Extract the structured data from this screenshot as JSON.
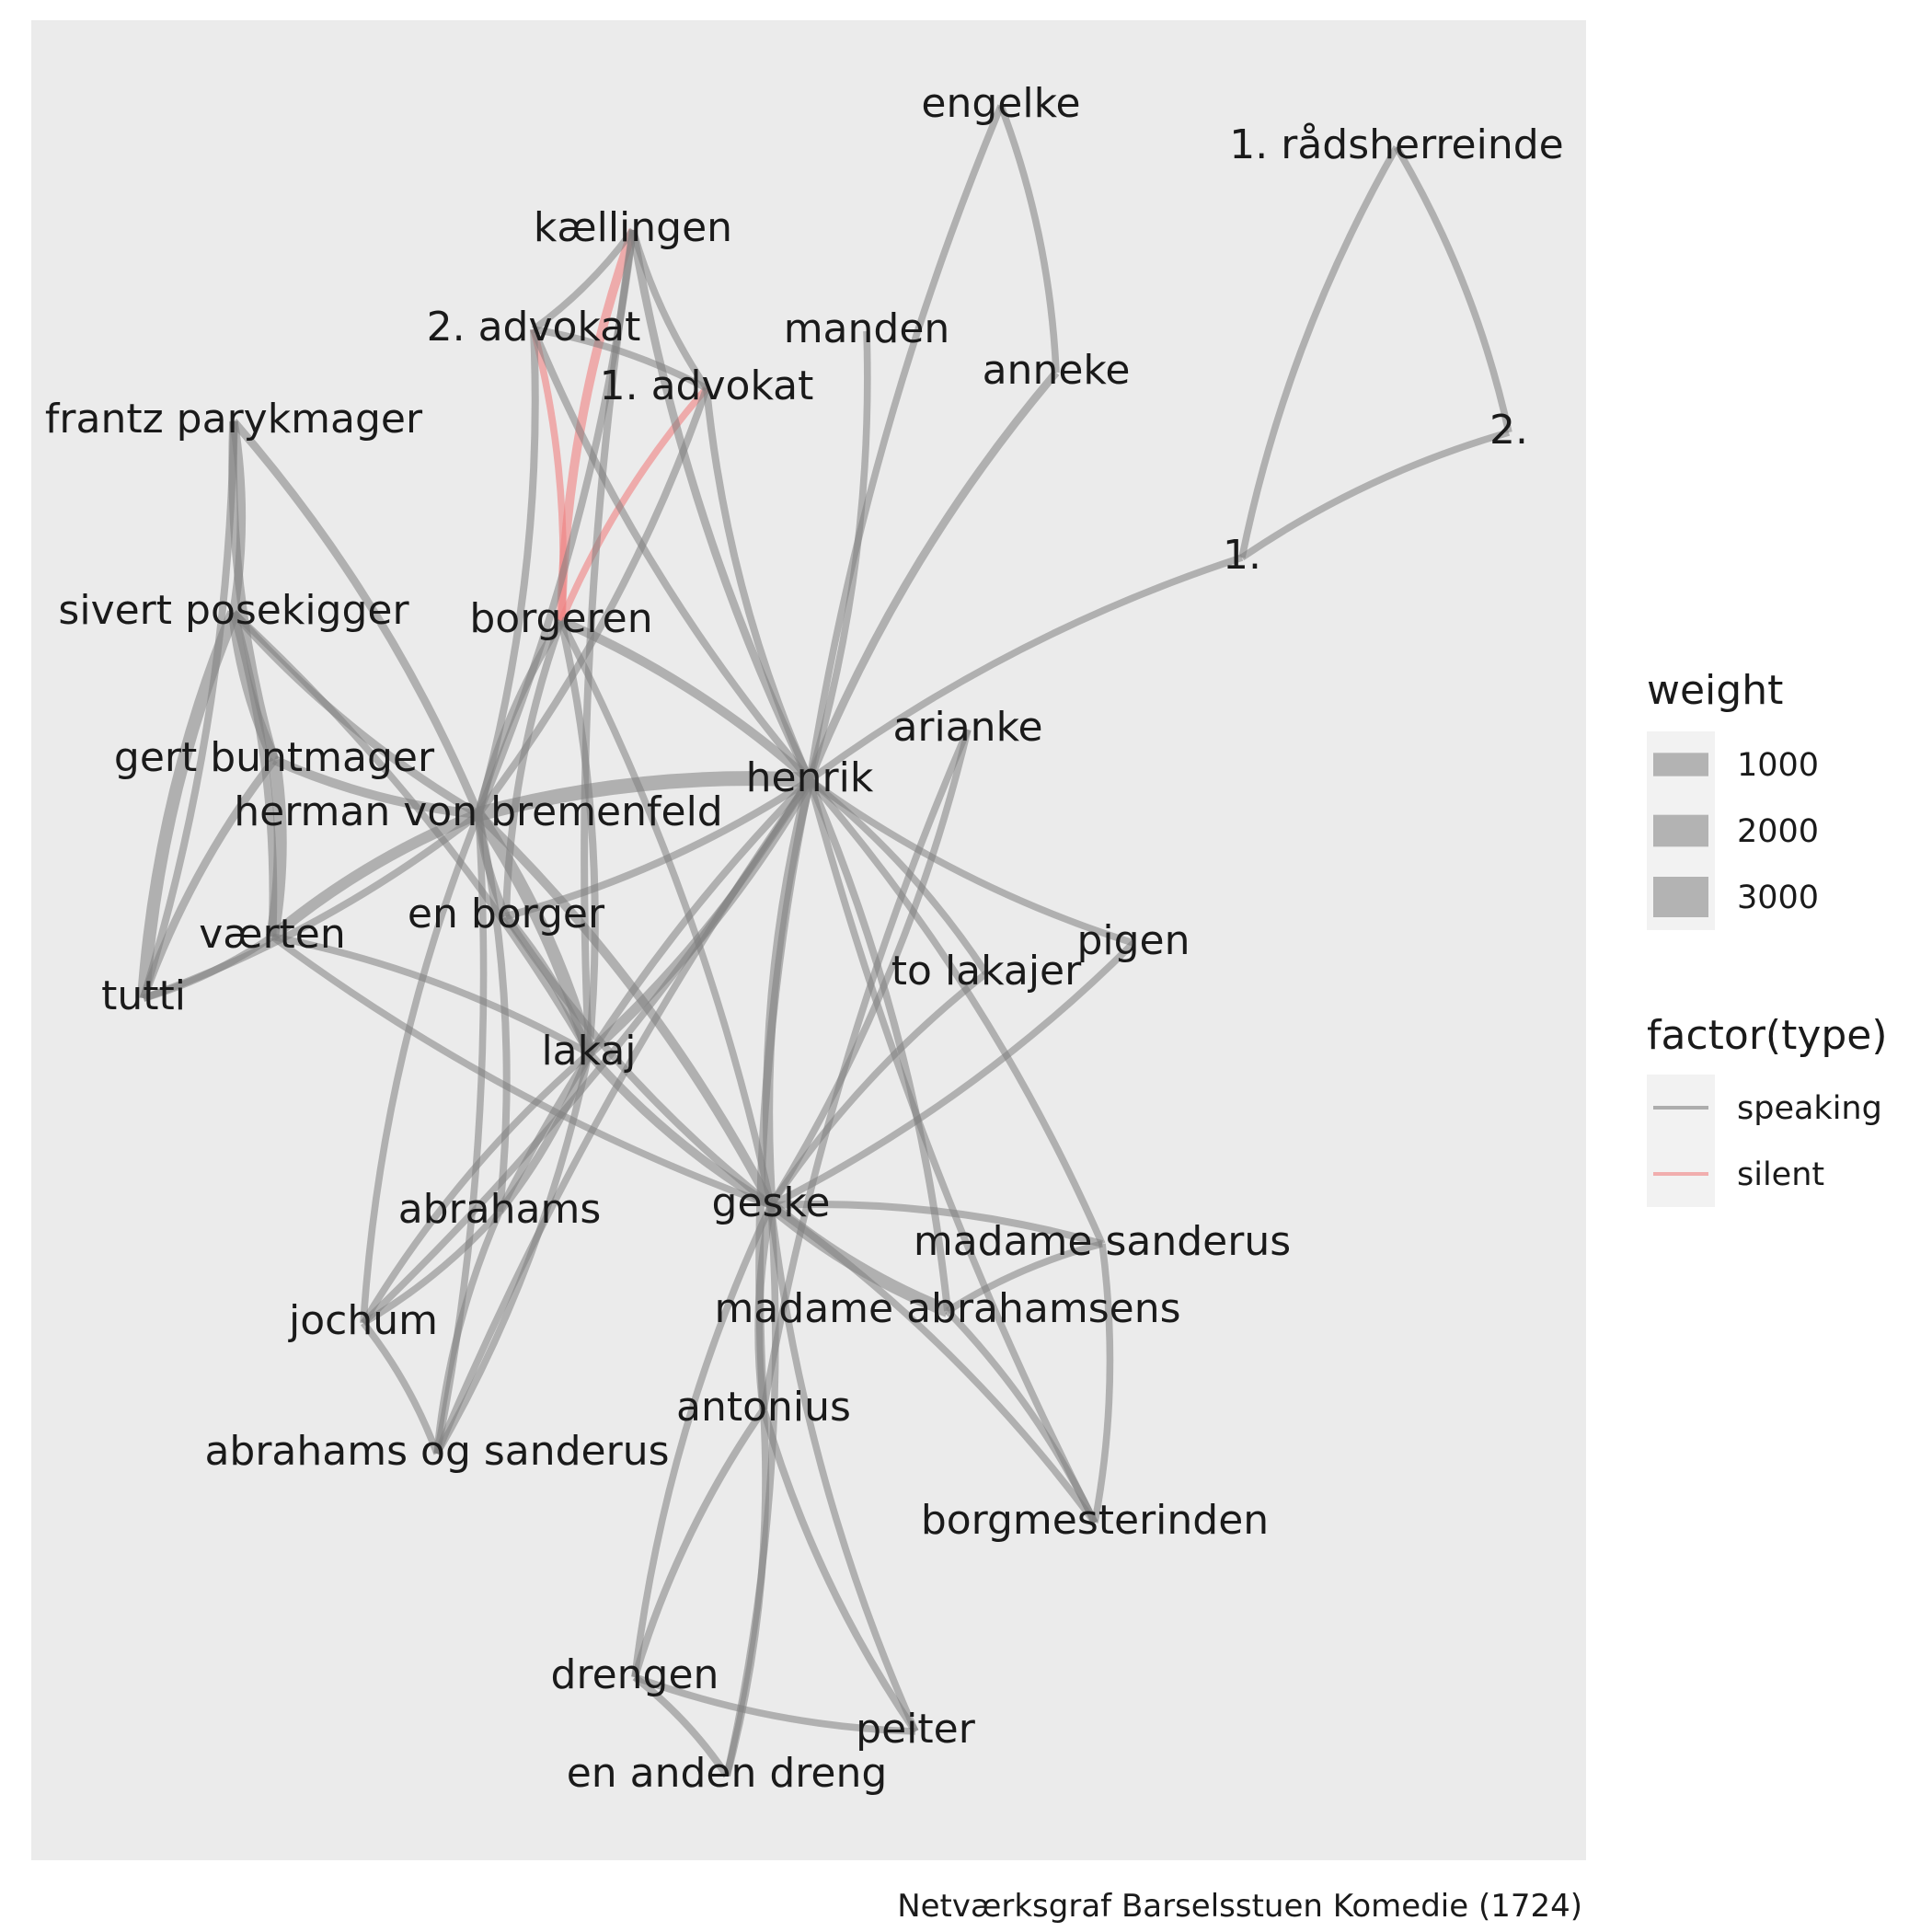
{
  "caption": "Netværksgraf Barselsstuen Komedie (1724)",
  "colors": {
    "panel": "#ebebeb",
    "speaking": "#7f7f7f",
    "silent": "#f08080",
    "text": "#1a1a1a"
  },
  "chart_data": {
    "type": "network",
    "nodes": [
      {
        "id": "henrik",
        "label": "henrik"
      },
      {
        "id": "herman von bremenfeld",
        "label": "herman von bremenfeld"
      },
      {
        "id": "geske",
        "label": "geske"
      },
      {
        "id": "lakaj",
        "label": "lakaj"
      },
      {
        "id": "borgeren",
        "label": "borgeren"
      },
      {
        "id": "kællingen",
        "label": "kællingen"
      },
      {
        "id": "2. advokat",
        "label": "2. advokat"
      },
      {
        "id": "1. advokat",
        "label": "1. advokat"
      },
      {
        "id": "manden",
        "label": "manden"
      },
      {
        "id": "engelke",
        "label": "engelke"
      },
      {
        "id": "anneke",
        "label": "anneke"
      },
      {
        "id": "1. rådsherreinde",
        "label": "1. rådsherreinde"
      },
      {
        "id": "2.",
        "label": "2."
      },
      {
        "id": "1.",
        "label": "1."
      },
      {
        "id": "frantz parykmager",
        "label": "frantz parykmager"
      },
      {
        "id": "sivert posekigger",
        "label": "sivert posekigger"
      },
      {
        "id": "gert buntmager",
        "label": "gert buntmager"
      },
      {
        "id": "værten",
        "label": "værten"
      },
      {
        "id": "tutti",
        "label": "tutti"
      },
      {
        "id": "en borger",
        "label": "en borger"
      },
      {
        "id": "arianke",
        "label": "arianke"
      },
      {
        "id": "pigen",
        "label": "pigen"
      },
      {
        "id": "to lakajer",
        "label": "to lakajer"
      },
      {
        "id": "abrahams",
        "label": "abrahams"
      },
      {
        "id": "jochum",
        "label": "jochum"
      },
      {
        "id": "abrahams og sanderus",
        "label": "abrahams og sanderus"
      },
      {
        "id": "madame sanderus",
        "label": "madame sanderus"
      },
      {
        "id": "madame abrahamsens",
        "label": "madame abrahamsens"
      },
      {
        "id": "antonius",
        "label": "antonius"
      },
      {
        "id": "borgmesterinden",
        "label": "borgmesterinden"
      },
      {
        "id": "drengen",
        "label": "drengen"
      },
      {
        "id": "en anden dreng",
        "label": "en anden dreng"
      },
      {
        "id": "peiter",
        "label": "peiter"
      }
    ],
    "edges": [
      {
        "source": "kællingen",
        "target": "borgeren",
        "type": "silent",
        "weight": 1500
      },
      {
        "source": "2. advokat",
        "target": "borgeren",
        "type": "silent",
        "weight": 900
      },
      {
        "source": "1. advokat",
        "target": "borgeren",
        "type": "silent",
        "weight": 900
      },
      {
        "source": "herman von bremenfeld",
        "target": "henrik",
        "type": "speaking",
        "weight": 3000
      },
      {
        "source": "geske",
        "target": "madame abrahamsens",
        "type": "speaking",
        "weight": 2500
      },
      {
        "source": "herman von bremenfeld",
        "target": "lakaj",
        "type": "speaking",
        "weight": 2500
      },
      {
        "source": "sivert posekigger",
        "target": "tutti",
        "type": "speaking",
        "weight": 2500
      },
      {
        "source": "gert buntmager",
        "target": "værten",
        "type": "speaking",
        "weight": 2500
      },
      {
        "source": "sivert posekigger",
        "target": "gert buntmager",
        "type": "speaking",
        "weight": 2000
      },
      {
        "source": "værten",
        "target": "herman von bremenfeld",
        "type": "speaking",
        "weight": 2000
      },
      {
        "source": "henrik",
        "target": "geske",
        "type": "speaking",
        "weight": 1800
      },
      {
        "source": "henrik",
        "target": "lakaj",
        "type": "speaking",
        "weight": 1800
      },
      {
        "source": "henrik",
        "target": "borgeren",
        "type": "speaking",
        "weight": 1500
      },
      {
        "source": "herman von bremenfeld",
        "target": "geske",
        "type": "speaking",
        "weight": 1500
      },
      {
        "source": "lakaj",
        "target": "geske",
        "type": "speaking",
        "weight": 1400
      },
      {
        "source": "frantz parykmager",
        "target": "sivert posekigger",
        "type": "speaking",
        "weight": 1400
      },
      {
        "source": "frantz parykmager",
        "target": "gert buntmager",
        "type": "speaking",
        "weight": 1400
      },
      {
        "source": "frantz parykmager",
        "target": "herman von bremenfeld",
        "type": "speaking",
        "weight": 1200
      },
      {
        "source": "sivert posekigger",
        "target": "herman von bremenfeld",
        "type": "speaking",
        "weight": 1200
      },
      {
        "source": "sivert posekigger",
        "target": "værten",
        "type": "speaking",
        "weight": 1200
      },
      {
        "source": "gert buntmager",
        "target": "tutti",
        "type": "speaking",
        "weight": 1200
      },
      {
        "source": "værten",
        "target": "tutti",
        "type": "speaking",
        "weight": 1000
      },
      {
        "source": "tutti",
        "target": "herman von bremenfeld",
        "type": "speaking",
        "weight": 1000
      },
      {
        "source": "frantz parykmager",
        "target": "tutti",
        "type": "speaking",
        "weight": 1000
      },
      {
        "source": "kællingen",
        "target": "henrik",
        "type": "speaking",
        "weight": 1200
      },
      {
        "source": "kællingen",
        "target": "herman von bremenfeld",
        "type": "speaking",
        "weight": 1000
      },
      {
        "source": "kællingen",
        "target": "lakaj",
        "type": "speaking",
        "weight": 1000
      },
      {
        "source": "kællingen",
        "target": "2. advokat",
        "type": "speaking",
        "weight": 900
      },
      {
        "source": "kællingen",
        "target": "1. advokat",
        "type": "speaking",
        "weight": 900
      },
      {
        "source": "2. advokat",
        "target": "1. advokat",
        "type": "speaking",
        "weight": 900
      },
      {
        "source": "2. advokat",
        "target": "henrik",
        "type": "speaking",
        "weight": 1000
      },
      {
        "source": "2. advokat",
        "target": "herman von bremenfeld",
        "type": "speaking",
        "weight": 1000
      },
      {
        "source": "1. advokat",
        "target": "henrik",
        "type": "speaking",
        "weight": 1000
      },
      {
        "source": "1. advokat",
        "target": "herman von bremenfeld",
        "type": "speaking",
        "weight": 1000
      },
      {
        "source": "borgeren",
        "target": "herman von bremenfeld",
        "type": "speaking",
        "weight": 1200
      },
      {
        "source": "borgeren",
        "target": "lakaj",
        "type": "speaking",
        "weight": 1000
      },
      {
        "source": "borgeren",
        "target": "en borger",
        "type": "speaking",
        "weight": 1000
      },
      {
        "source": "manden",
        "target": "henrik",
        "type": "speaking",
        "weight": 900
      },
      {
        "source": "engelke",
        "target": "henrik",
        "type": "speaking",
        "weight": 900
      },
      {
        "source": "engelke",
        "target": "anneke",
        "type": "speaking",
        "weight": 900
      },
      {
        "source": "anneke",
        "target": "henrik",
        "type": "speaking",
        "weight": 1200
      },
      {
        "source": "1. rådsherreinde",
        "target": "2.",
        "type": "speaking",
        "weight": 900
      },
      {
        "source": "1. rådsherreinde",
        "target": "1.",
        "type": "speaking",
        "weight": 900
      },
      {
        "source": "1.",
        "target": "2.",
        "type": "speaking",
        "weight": 900
      },
      {
        "source": "1.",
        "target": "henrik",
        "type": "speaking",
        "weight": 900
      },
      {
        "source": "henrik",
        "target": "madame abrahamsens",
        "type": "speaking",
        "weight": 1000
      },
      {
        "source": "henrik",
        "target": "antonius",
        "type": "speaking",
        "weight": 1200
      },
      {
        "source": "henrik",
        "target": "to lakajer",
        "type": "speaking",
        "weight": 900
      },
      {
        "source": "henrik",
        "target": "pigen",
        "type": "speaking",
        "weight": 900
      },
      {
        "source": "henrik",
        "target": "madame sanderus",
        "type": "speaking",
        "weight": 900
      },
      {
        "source": "henrik",
        "target": "abrahams",
        "type": "speaking",
        "weight": 1000
      },
      {
        "source": "henrik",
        "target": "en borger",
        "type": "speaking",
        "weight": 1000
      },
      {
        "source": "henrik",
        "target": "borgmesterinden",
        "type": "speaking",
        "weight": 900
      },
      {
        "source": "henrik",
        "target": "jochum",
        "type": "speaking",
        "weight": 900
      },
      {
        "source": "henrik",
        "target": "abrahams og sanderus",
        "type": "speaking",
        "weight": 900
      },
      {
        "source": "arianke",
        "target": "geske",
        "type": "speaking",
        "weight": 900
      },
      {
        "source": "arianke",
        "target": "antonius",
        "type": "speaking",
        "weight": 900
      },
      {
        "source": "pigen",
        "target": "geske",
        "type": "speaking",
        "weight": 900
      },
      {
        "source": "to lakajer",
        "target": "geske",
        "type": "speaking",
        "weight": 900
      },
      {
        "source": "geske",
        "target": "madame sanderus",
        "type": "speaking",
        "weight": 1000
      },
      {
        "source": "geske",
        "target": "antonius",
        "type": "speaking",
        "weight": 1200
      },
      {
        "source": "geske",
        "target": "borgmesterinden",
        "type": "speaking",
        "weight": 900
      },
      {
        "source": "geske",
        "target": "drengen",
        "type": "speaking",
        "weight": 900
      },
      {
        "source": "geske",
        "target": "en anden dreng",
        "type": "speaking",
        "weight": 900
      },
      {
        "source": "geske",
        "target": "peiter",
        "type": "speaking",
        "weight": 900
      },
      {
        "source": "madame sanderus",
        "target": "borgmesterinden",
        "type": "speaking",
        "weight": 900
      },
      {
        "source": "madame sanderus",
        "target": "madame abrahamsens",
        "type": "speaking",
        "weight": 900
      },
      {
        "source": "madame abrahamsens",
        "target": "borgmesterinden",
        "type": "speaking",
        "weight": 900
      },
      {
        "source": "antonius",
        "target": "drengen",
        "type": "speaking",
        "weight": 1000
      },
      {
        "source": "antonius",
        "target": "en anden dreng",
        "type": "speaking",
        "weight": 1000
      },
      {
        "source": "antonius",
        "target": "peiter",
        "type": "speaking",
        "weight": 1000
      },
      {
        "source": "drengen",
        "target": "en anden dreng",
        "type": "speaking",
        "weight": 1000
      },
      {
        "source": "drengen",
        "target": "peiter",
        "type": "speaking",
        "weight": 900
      },
      {
        "source": "lakaj",
        "target": "abrahams",
        "type": "speaking",
        "weight": 1200
      },
      {
        "source": "lakaj",
        "target": "jochum",
        "type": "speaking",
        "weight": 900
      },
      {
        "source": "lakaj",
        "target": "abrahams og sanderus",
        "type": "speaking",
        "weight": 900
      },
      {
        "source": "lakaj",
        "target": "en borger",
        "type": "speaking",
        "weight": 1400
      },
      {
        "source": "herman von bremenfeld",
        "target": "abrahams",
        "type": "speaking",
        "weight": 1000
      },
      {
        "source": "herman von bremenfeld",
        "target": "jochum",
        "type": "speaking",
        "weight": 900
      },
      {
        "source": "herman von bremenfeld",
        "target": "abrahams og sanderus",
        "type": "speaking",
        "weight": 900
      },
      {
        "source": "herman von bremenfeld",
        "target": "en borger",
        "type": "speaking",
        "weight": 1200
      },
      {
        "source": "abrahams",
        "target": "jochum",
        "type": "speaking",
        "weight": 900
      },
      {
        "source": "abrahams",
        "target": "abrahams og sanderus",
        "type": "speaking",
        "weight": 900
      },
      {
        "source": "jochum",
        "target": "abrahams og sanderus",
        "type": "speaking",
        "weight": 900
      },
      {
        "source": "værten",
        "target": "geske",
        "type": "speaking",
        "weight": 900
      },
      {
        "source": "værten",
        "target": "lakaj",
        "type": "speaking",
        "weight": 900
      },
      {
        "source": "gert buntmager",
        "target": "herman von bremenfeld",
        "type": "speaking",
        "weight": 1500
      },
      {
        "source": "sivert posekigger",
        "target": "lakaj",
        "type": "speaking",
        "weight": 900
      },
      {
        "source": "en borger",
        "target": "geske",
        "type": "speaking",
        "weight": 1000
      },
      {
        "source": "borgeren",
        "target": "geske",
        "type": "speaking",
        "weight": 900
      }
    ],
    "legend": {
      "position": "right",
      "weight_title": "weight",
      "weight_items": [
        {
          "label": "1000",
          "value": 1000
        },
        {
          "label": "2000",
          "value": 2000
        },
        {
          "label": "3000",
          "value": 3000
        }
      ],
      "type_title": "factor(type)",
      "type_items": [
        {
          "label": "speaking",
          "key": "speaking"
        },
        {
          "label": "silent",
          "key": "silent"
        }
      ]
    }
  }
}
